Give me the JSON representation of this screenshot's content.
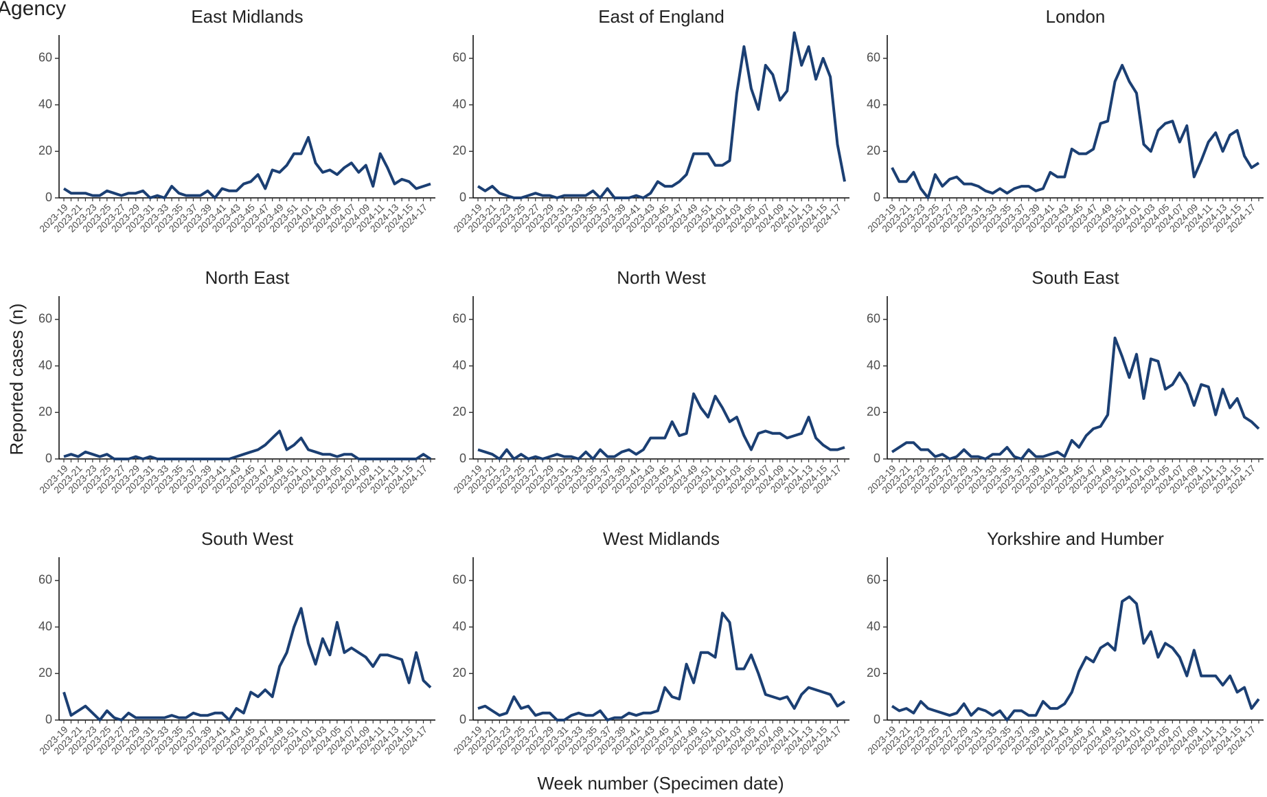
{
  "figure": {
    "title": "Agency",
    "ylabel": "Reported cases (n)",
    "xlabel": "Week number (Specimen date)"
  },
  "chart_data": [
    {
      "type": "line",
      "title": "East Midlands",
      "color": "#1b3f73",
      "ylim": [
        0,
        70
      ],
      "yticks": [
        0,
        20,
        40,
        60
      ],
      "categories": [
        "2023-19",
        null,
        "2023-21",
        null,
        "2023-23",
        null,
        "2023-25",
        null,
        "2023-27",
        null,
        "2023-29",
        null,
        "2023-31",
        null,
        "2023-33",
        null,
        "2023-35",
        null,
        "2023-37",
        null,
        "2023-39",
        null,
        "2023-41",
        null,
        "2023-43",
        null,
        "2023-45",
        null,
        "2023-47",
        null,
        "2023-49",
        null,
        "2023-51",
        null,
        "2024-01",
        null,
        "2024-03",
        null,
        "2024-05",
        null,
        "2024-07",
        null,
        "2024-09",
        null,
        "2024-11",
        null,
        "2024-13",
        null,
        "2024-15",
        null,
        "2024-17",
        null
      ],
      "values": [
        4,
        2,
        2,
        2,
        1,
        1,
        3,
        2,
        1,
        2,
        2,
        3,
        0,
        1,
        0,
        5,
        2,
        1,
        1,
        1,
        3,
        0,
        4,
        3,
        3,
        6,
        7,
        10,
        4,
        12,
        11,
        14,
        19,
        19,
        26,
        15,
        11,
        12,
        10,
        13,
        15,
        11,
        14,
        5,
        19,
        13,
        6,
        8,
        7,
        4,
        5,
        6
      ]
    },
    {
      "type": "line",
      "title": "East of England",
      "color": "#1b3f73",
      "ylim": [
        0,
        70
      ],
      "yticks": [
        0,
        20,
        40,
        60
      ],
      "categories": [
        "2023-19",
        null,
        "2023-21",
        null,
        "2023-23",
        null,
        "2023-25",
        null,
        "2023-27",
        null,
        "2023-29",
        null,
        "2023-31",
        null,
        "2023-33",
        null,
        "2023-35",
        null,
        "2023-37",
        null,
        "2023-39",
        null,
        "2023-41",
        null,
        "2023-43",
        null,
        "2023-45",
        null,
        "2023-47",
        null,
        "2023-49",
        null,
        "2023-51",
        null,
        "2024-01",
        null,
        "2024-03",
        null,
        "2024-05",
        null,
        "2024-07",
        null,
        "2024-09",
        null,
        "2024-11",
        null,
        "2024-13",
        null,
        "2024-15",
        null,
        "2024-17",
        null
      ],
      "values": [
        5,
        3,
        5,
        2,
        1,
        0,
        0,
        1,
        2,
        1,
        1,
        0,
        1,
        1,
        1,
        1,
        3,
        0,
        4,
        0,
        0,
        0,
        1,
        0,
        2,
        7,
        5,
        5,
        7,
        10,
        19,
        19,
        19,
        14,
        14,
        16,
        45,
        65,
        47,
        38,
        57,
        53,
        42,
        46,
        71,
        57,
        65,
        51,
        60,
        52,
        23,
        7
      ]
    },
    {
      "type": "line",
      "title": "London",
      "color": "#1b3f73",
      "ylim": [
        0,
        70
      ],
      "yticks": [
        0,
        20,
        40,
        60
      ],
      "categories": [
        "2023-19",
        null,
        "2023-21",
        null,
        "2023-23",
        null,
        "2023-25",
        null,
        "2023-27",
        null,
        "2023-29",
        null,
        "2023-31",
        null,
        "2023-33",
        null,
        "2023-35",
        null,
        "2023-37",
        null,
        "2023-39",
        null,
        "2023-41",
        null,
        "2023-43",
        null,
        "2023-45",
        null,
        "2023-47",
        null,
        "2023-49",
        null,
        "2023-51",
        null,
        "2024-01",
        null,
        "2024-03",
        null,
        "2024-05",
        null,
        "2024-07",
        null,
        "2024-09",
        null,
        "2024-11",
        null,
        "2024-13",
        null,
        "2024-15",
        null,
        "2024-17",
        null
      ],
      "values": [
        13,
        7,
        7,
        11,
        4,
        0,
        10,
        5,
        8,
        9,
        6,
        6,
        5,
        3,
        2,
        4,
        2,
        4,
        5,
        5,
        3,
        4,
        11,
        9,
        9,
        21,
        19,
        19,
        21,
        32,
        33,
        50,
        57,
        50,
        45,
        23,
        20,
        29,
        32,
        33,
        24,
        31,
        9,
        16,
        24,
        28,
        20,
        27,
        29,
        18,
        13,
        15
      ]
    },
    {
      "type": "line",
      "title": "North East",
      "color": "#1b3f73",
      "ylim": [
        0,
        70
      ],
      "yticks": [
        0,
        20,
        40,
        60
      ],
      "categories": [
        "2023-19",
        null,
        "2023-21",
        null,
        "2023-23",
        null,
        "2023-25",
        null,
        "2023-27",
        null,
        "2023-29",
        null,
        "2023-31",
        null,
        "2023-33",
        null,
        "2023-35",
        null,
        "2023-37",
        null,
        "2023-39",
        null,
        "2023-41",
        null,
        "2023-43",
        null,
        "2023-45",
        null,
        "2023-47",
        null,
        "2023-49",
        null,
        "2023-51",
        null,
        "2024-01",
        null,
        "2024-03",
        null,
        "2024-05",
        null,
        "2024-07",
        null,
        "2024-09",
        null,
        "2024-11",
        null,
        "2024-13",
        null,
        "2024-15",
        null,
        "2024-17",
        null
      ],
      "values": [
        1,
        2,
        1,
        3,
        2,
        1,
        2,
        0,
        0,
        0,
        1,
        0,
        1,
        0,
        0,
        0,
        0,
        0,
        0,
        0,
        0,
        0,
        0,
        0,
        1,
        2,
        3,
        4,
        6,
        9,
        12,
        4,
        6,
        9,
        4,
        3,
        2,
        2,
        1,
        2,
        2,
        0,
        0,
        0,
        0,
        0,
        0,
        0,
        0,
        0,
        2,
        0
      ]
    },
    {
      "type": "line",
      "title": "North West",
      "color": "#1b3f73",
      "ylim": [
        0,
        70
      ],
      "yticks": [
        0,
        20,
        40,
        60
      ],
      "categories": [
        "2023-19",
        null,
        "2023-21",
        null,
        "2023-23",
        null,
        "2023-25",
        null,
        "2023-27",
        null,
        "2023-29",
        null,
        "2023-31",
        null,
        "2023-33",
        null,
        "2023-35",
        null,
        "2023-37",
        null,
        "2023-39",
        null,
        "2023-41",
        null,
        "2023-43",
        null,
        "2023-45",
        null,
        "2023-47",
        null,
        "2023-49",
        null,
        "2023-51",
        null,
        "2024-01",
        null,
        "2024-03",
        null,
        "2024-05",
        null,
        "2024-07",
        null,
        "2024-09",
        null,
        "2024-11",
        null,
        "2024-13",
        null,
        "2024-15",
        null,
        "2024-17",
        null
      ],
      "values": [
        4,
        3,
        2,
        0,
        4,
        0,
        2,
        0,
        1,
        0,
        1,
        2,
        1,
        1,
        0,
        3,
        0,
        4,
        1,
        1,
        3,
        4,
        2,
        4,
        9,
        9,
        9,
        16,
        10,
        11,
        28,
        22,
        18,
        27,
        22,
        16,
        18,
        10,
        4,
        11,
        12,
        11,
        11,
        9,
        10,
        11,
        18,
        9,
        6,
        4,
        4,
        5
      ]
    },
    {
      "type": "line",
      "title": "South East",
      "color": "#1b3f73",
      "ylim": [
        0,
        70
      ],
      "yticks": [
        0,
        20,
        40,
        60
      ],
      "categories": [
        "2023-19",
        null,
        "2023-21",
        null,
        "2023-23",
        null,
        "2023-25",
        null,
        "2023-27",
        null,
        "2023-29",
        null,
        "2023-31",
        null,
        "2023-33",
        null,
        "2023-35",
        null,
        "2023-37",
        null,
        "2023-39",
        null,
        "2023-41",
        null,
        "2023-43",
        null,
        "2023-45",
        null,
        "2023-47",
        null,
        "2023-49",
        null,
        "2023-51",
        null,
        "2024-01",
        null,
        "2024-03",
        null,
        "2024-05",
        null,
        "2024-07",
        null,
        "2024-09",
        null,
        "2024-11",
        null,
        "2024-13",
        null,
        "2024-15",
        null,
        "2024-17",
        null
      ],
      "values": [
        3,
        5,
        7,
        7,
        4,
        4,
        1,
        2,
        0,
        1,
        4,
        1,
        1,
        0,
        2,
        2,
        5,
        1,
        0,
        4,
        1,
        1,
        2,
        3,
        1,
        8,
        5,
        10,
        13,
        14,
        19,
        52,
        44,
        35,
        45,
        26,
        43,
        42,
        30,
        32,
        37,
        32,
        23,
        32,
        31,
        19,
        30,
        22,
        26,
        18,
        16,
        13
      ]
    },
    {
      "type": "line",
      "title": "South West",
      "color": "#1b3f73",
      "ylim": [
        0,
        70
      ],
      "yticks": [
        0,
        20,
        40,
        60
      ],
      "categories": [
        "2023-19",
        null,
        "2023-21",
        null,
        "2023-23",
        null,
        "2023-25",
        null,
        "2023-27",
        null,
        "2023-29",
        null,
        "2023-31",
        null,
        "2023-33",
        null,
        "2023-35",
        null,
        "2023-37",
        null,
        "2023-39",
        null,
        "2023-41",
        null,
        "2023-43",
        null,
        "2023-45",
        null,
        "2023-47",
        null,
        "2023-49",
        null,
        "2023-51",
        null,
        "2024-01",
        null,
        "2024-03",
        null,
        "2024-05",
        null,
        "2024-07",
        null,
        "2024-09",
        null,
        "2024-11",
        null,
        "2024-13",
        null,
        "2024-15",
        null,
        "2024-17",
        null
      ],
      "values": [
        12,
        2,
        4,
        6,
        3,
        0,
        4,
        1,
        0,
        3,
        1,
        1,
        1,
        1,
        1,
        2,
        1,
        1,
        3,
        2,
        2,
        3,
        3,
        0,
        5,
        3,
        12,
        10,
        13,
        10,
        23,
        29,
        40,
        48,
        33,
        24,
        35,
        28,
        42,
        29,
        31,
        29,
        27,
        23,
        28,
        28,
        27,
        26,
        16,
        29,
        17,
        14
      ]
    },
    {
      "type": "line",
      "title": "West Midlands",
      "color": "#1b3f73",
      "ylim": [
        0,
        70
      ],
      "yticks": [
        0,
        20,
        40,
        60
      ],
      "categories": [
        "2023-19",
        null,
        "2023-21",
        null,
        "2023-23",
        null,
        "2023-25",
        null,
        "2023-27",
        null,
        "2023-29",
        null,
        "2023-31",
        null,
        "2023-33",
        null,
        "2023-35",
        null,
        "2023-37",
        null,
        "2023-39",
        null,
        "2023-41",
        null,
        "2023-43",
        null,
        "2023-45",
        null,
        "2023-47",
        null,
        "2023-49",
        null,
        "2023-51",
        null,
        "2024-01",
        null,
        "2024-03",
        null,
        "2024-05",
        null,
        "2024-07",
        null,
        "2024-09",
        null,
        "2024-11",
        null,
        "2024-13",
        null,
        "2024-15",
        null,
        "2024-17",
        null
      ],
      "values": [
        5,
        6,
        4,
        2,
        3,
        10,
        5,
        6,
        2,
        3,
        3,
        0,
        0,
        2,
        3,
        2,
        2,
        4,
        0,
        1,
        1,
        3,
        2,
        3,
        3,
        4,
        14,
        10,
        9,
        24,
        16,
        29,
        29,
        27,
        46,
        42,
        22,
        22,
        28,
        20,
        11,
        10,
        9,
        10,
        5,
        11,
        14,
        13,
        12,
        11,
        6,
        8
      ]
    },
    {
      "type": "line",
      "title": "Yorkshire and Humber",
      "color": "#1b3f73",
      "ylim": [
        0,
        70
      ],
      "yticks": [
        0,
        20,
        40,
        60
      ],
      "categories": [
        "2023-19",
        null,
        "2023-21",
        null,
        "2023-23",
        null,
        "2023-25",
        null,
        "2023-27",
        null,
        "2023-29",
        null,
        "2023-31",
        null,
        "2023-33",
        null,
        "2023-35",
        null,
        "2023-37",
        null,
        "2023-39",
        null,
        "2023-41",
        null,
        "2023-43",
        null,
        "2023-45",
        null,
        "2023-47",
        null,
        "2023-49",
        null,
        "2023-51",
        null,
        "2024-01",
        null,
        "2024-03",
        null,
        "2024-05",
        null,
        "2024-07",
        null,
        "2024-09",
        null,
        "2024-11",
        null,
        "2024-13",
        null,
        "2024-15",
        null,
        "2024-17",
        null
      ],
      "values": [
        6,
        4,
        5,
        3,
        8,
        5,
        4,
        3,
        2,
        3,
        7,
        2,
        5,
        4,
        2,
        4,
        0,
        4,
        4,
        2,
        2,
        8,
        5,
        5,
        7,
        12,
        21,
        27,
        25,
        31,
        33,
        30,
        51,
        53,
        50,
        33,
        38,
        27,
        33,
        31,
        27,
        19,
        30,
        19,
        19,
        19,
        15,
        19,
        12,
        14,
        5,
        9
      ]
    }
  ]
}
